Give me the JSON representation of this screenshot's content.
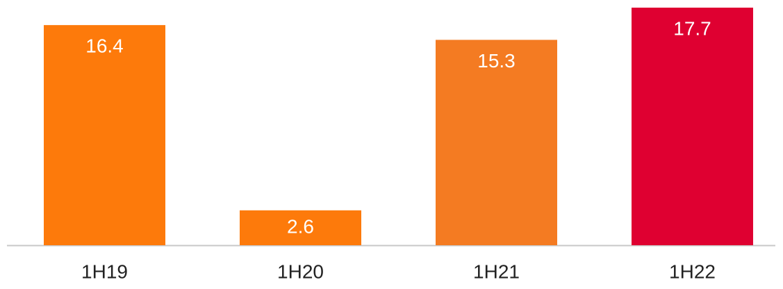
{
  "chart_data": {
    "type": "bar",
    "categories": [
      "1H19",
      "1H20",
      "1H21",
      "1H22"
    ],
    "values": [
      16.4,
      2.6,
      15.3,
      17.7
    ],
    "colors": [
      "#fd7a0b",
      "#fd7a0b",
      "#f47b22",
      "#df0031"
    ]
  }
}
